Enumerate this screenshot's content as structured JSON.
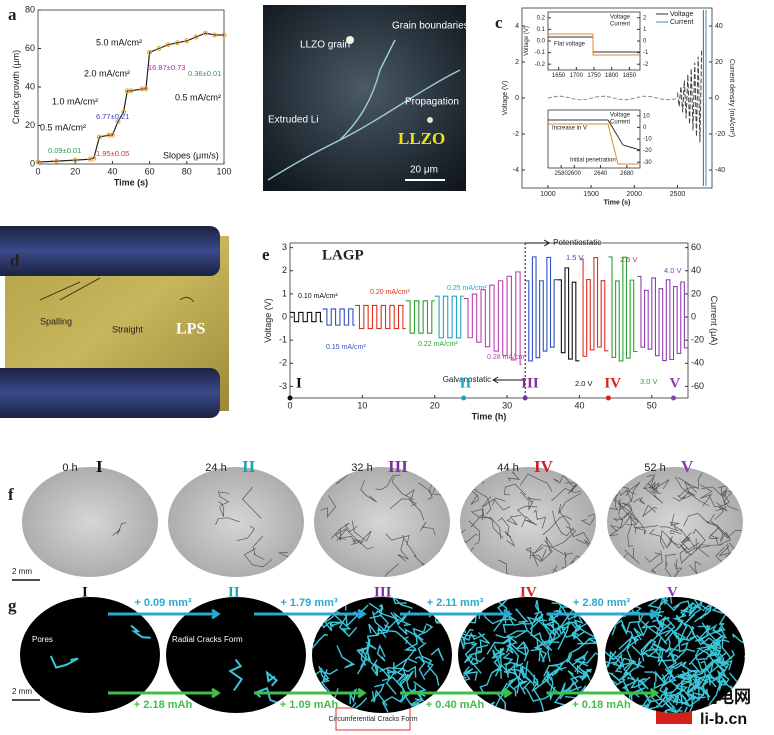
{
  "figure": {
    "panel_labels": [
      "a",
      "b",
      "c",
      "d",
      "e",
      "f",
      "g"
    ],
    "b": {
      "texts": [
        "LLZO grain",
        "Grain boundaries",
        "Extruded Li",
        "Propagation"
      ],
      "material": "LLZO",
      "scale": "20 μm"
    },
    "d": {
      "texts": [
        "Spalling",
        "Straight"
      ],
      "material": "LPS"
    },
    "f": {
      "times": [
        "0 h",
        "24 h",
        "32 h",
        "44 h",
        "52 h"
      ],
      "stages": [
        "I",
        "II",
        "III",
        "IV",
        "V"
      ],
      "scale": "2 mm"
    },
    "g": {
      "stages": [
        "I",
        "II",
        "III",
        "IV",
        "V"
      ],
      "volumes": [
        "+ 0.09 mm³",
        "+ 1.79 mm³",
        "+ 2.11 mm³",
        "+ 2.80 mm³"
      ],
      "capacities": [
        "+ 2.18 mAh",
        "+ 1.09 mAh",
        "+ 0.40 mAh",
        "+ 0.18 mAh"
      ],
      "notes": [
        "Pores",
        "Radial Cracks Form",
        "Circumferential Cracks Form"
      ],
      "scale": "2 mm"
    },
    "watermark": {
      "logo": "LI",
      "name": "锂电网",
      "site": "li-b.cn"
    }
  },
  "chart_data": [
    {
      "type": "line",
      "xlabel": "Time (s)",
      "ylabel": "Crack growth (μm)",
      "xlim": [
        0,
        100
      ],
      "xticks": [
        0,
        20,
        40,
        60,
        80,
        100
      ],
      "ylim": [
        0,
        80
      ],
      "yticks": [
        0,
        20,
        40,
        60,
        80
      ],
      "x": [
        0,
        10,
        20,
        28,
        30,
        33,
        38,
        40,
        43,
        46,
        48,
        50,
        56,
        58,
        60,
        65,
        70,
        75,
        80,
        85,
        90,
        95,
        100
      ],
      "values": [
        1,
        1.5,
        2,
        2.5,
        3,
        14,
        15,
        15,
        22,
        27,
        38,
        38,
        39,
        39,
        58,
        60,
        62,
        63,
        64,
        66,
        68,
        67,
        67
      ],
      "color": "#222",
      "marker_color": "#f0a030",
      "annotations": [
        "5.0 mA/cm²",
        "2.0 mA/cm²",
        "1.0 mA/cm²",
        "0.5 mA/cm²",
        "0.5 mA/cm²",
        "0.09±0.01",
        "1.95±0.05",
        "6.77±0.21",
        "16.87±0.73",
        "0.36±0.01",
        "Slopes (μm/s)"
      ]
    },
    {
      "type": "line",
      "xlabel": "Time (s)",
      "ylabel": "Voltage (V)",
      "y2label": "Current density (mA/cm²)",
      "xlim": [
        700,
        2900
      ],
      "xticks": [
        1000,
        1500,
        2000,
        2500
      ],
      "ylim": [
        -5,
        5
      ],
      "yticks": [
        -4,
        -2,
        0,
        2,
        4
      ],
      "y2lim": [
        -50,
        50
      ],
      "y2ticks": [
        -40,
        -20,
        0,
        20,
        40
      ],
      "legend": [
        "Voltage",
        "Current"
      ],
      "insets": [
        {
          "xlim": [
            1620,
            1880
          ],
          "xticks": [
            1650,
            1700,
            1750,
            1800,
            1850
          ],
          "ylim": [
            -0.25,
            0.25
          ],
          "yticks": [
            -0.2,
            -0.1,
            {
              "value": 0,
              "label": "0.0"
            },
            0.1,
            0.2
          ],
          "y2lim": [
            -2.5,
            2.5
          ],
          "y2ticks": [
            -2,
            -1,
            0,
            1,
            2
          ],
          "ylabel": "Voltage (V)",
          "notes": [
            "Flat voltage"
          ],
          "legend": [
            "Voltage",
            "Current"
          ]
        },
        {
          "xlim": [
            2560,
            2700
          ],
          "xticks": [
            2580,
            2600,
            2640,
            2680
          ],
          "ylim": [
            -1,
            1
          ],
          "y2lim": [
            -35,
            15
          ],
          "y2ticks": [
            10,
            0,
            -10,
            -20,
            -30
          ],
          "notes": [
            "Increase in V",
            "Initial penetration"
          ],
          "legend": [
            "Voltage",
            "Current"
          ]
        }
      ]
    },
    {
      "type": "line",
      "title": "LAGP",
      "xlabel": "Time (h)",
      "ylabel": "Voltage (V)",
      "y2label": "Current (μA)",
      "xlim": [
        0,
        55
      ],
      "xticks": [
        0,
        10,
        20,
        30,
        40,
        50
      ],
      "ylim": [
        -3.5,
        3.2
      ],
      "yticks": [
        -3,
        -2,
        -1,
        0,
        1,
        2,
        3
      ],
      "y2lim": [
        -70,
        64
      ],
      "y2ticks": [
        -60,
        -40,
        -20,
        0,
        20,
        40,
        60
      ],
      "modes": [
        "Potentiostatic",
        "Galvanostatic"
      ],
      "mode_switch": 32.5,
      "current_labels": [
        "0.10 mA/cm²",
        "0.15 mA/cm²",
        "0.20 mA/cm²",
        "0.22 mA/cm²",
        "0.25 mA/cm²",
        "0.28 mA/cm²"
      ],
      "voltage_labels": [
        "1.5 V",
        "2.0 V",
        "2.5 V",
        "3.0 V",
        "4.0 V"
      ],
      "stages": [
        {
          "label": "I",
          "x": 0,
          "color": "#111111"
        },
        {
          "label": "II",
          "x": 24,
          "color": "#1aa3b3"
        },
        {
          "label": "III",
          "x": 32.5,
          "color": "#7b2fa0"
        },
        {
          "label": "IV",
          "x": 44,
          "color": "#d62020"
        },
        {
          "label": "V",
          "x": 53,
          "color": "#8b3fb0"
        }
      ]
    }
  ]
}
